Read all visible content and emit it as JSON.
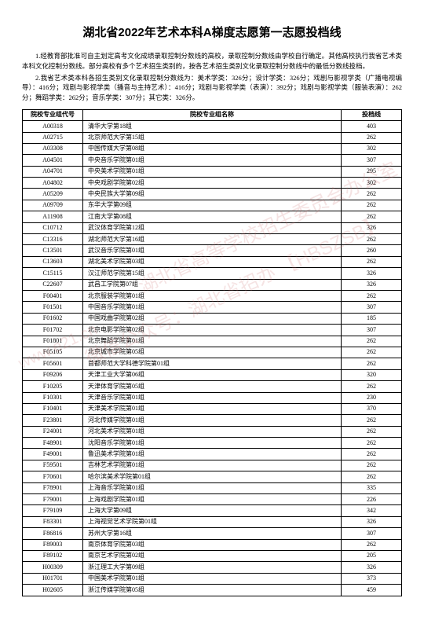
{
  "title": "湖北省2022年艺术本科A梯度志愿第一志愿投档线",
  "intro": [
    "1.经教育部批准可自主划定高考文化成绩录取控制分数线的高校，录取控制分数线由学校自行确定。其他高校执行我省艺术类本科文化控制分数线。部分高校有多个艺术招生类别的，按各艺术招生类别文化录取控制分数线中的最低分数线投档。",
    "2.我省艺术类本科各招生类别文化录取控制分数线为：美术学类：326分；设计学类：326分；戏剧与影视学类（广播电视编导）：416分；戏剧与影视学类（播音与主持艺术）：416分；戏剧与影视学类（表演）：392分；戏剧与影视学类（服装表演）：262分；舞蹈学类：262分；音乐学类：307分；其它类：326分。"
  ],
  "headers": {
    "code": "院校专业组代号",
    "name": "院校专业组名称",
    "score": "投档线"
  },
  "rows": [
    {
      "code": "A00318",
      "name": "清华大学第18组",
      "score": "403"
    },
    {
      "code": "A02715",
      "name": "北京师范大学第15组",
      "score": "262"
    },
    {
      "code": "A03308",
      "name": "中国传媒大学第08组",
      "score": "302"
    },
    {
      "code": "A04501",
      "name": "中央音乐学院第01组",
      "score": "307"
    },
    {
      "code": "A04701",
      "name": "中央美术学院第01组",
      "score": "295"
    },
    {
      "code": "A04802",
      "name": "中央戏剧学院第02组",
      "score": "302"
    },
    {
      "code": "A05209",
      "name": "中央民族大学第09组",
      "score": "262"
    },
    {
      "code": "A09709",
      "name": "东华大学第09组",
      "score": "262"
    },
    {
      "code": "A11908",
      "name": "江南大学第08组",
      "score": "262"
    },
    {
      "code": "C10712",
      "name": "武汉体育学院第12组",
      "score": "326"
    },
    {
      "code": "C13316",
      "name": "湖北师范大学第16组",
      "score": "262"
    },
    {
      "code": "C13501",
      "name": "武汉音乐学院第01组",
      "score": "260"
    },
    {
      "code": "C13603",
      "name": "湖北美术学院第03组",
      "score": "262"
    },
    {
      "code": "C15115",
      "name": "汉江师范学院第15组",
      "score": "326"
    },
    {
      "code": "C22607",
      "name": "武昌工学院第07组",
      "score": "326"
    },
    {
      "code": "F00401",
      "name": "北京服装学院第01组",
      "score": "262"
    },
    {
      "code": "F01501",
      "name": "中国音乐学院第01组",
      "score": "307"
    },
    {
      "code": "F01602",
      "name": "中国戏曲学院第02组",
      "score": "185"
    },
    {
      "code": "F01702",
      "name": "北京电影学院第02组",
      "score": "307"
    },
    {
      "code": "F01801",
      "name": "北京舞蹈学院第01组",
      "score": "262"
    },
    {
      "code": "F05105",
      "name": "北京城市学院第05组",
      "score": "262"
    },
    {
      "code": "F05601",
      "name": "首都师范大学科德学院第01组",
      "score": "262"
    },
    {
      "code": "F09206",
      "name": "天津工业大学第06组",
      "score": "320"
    },
    {
      "code": "F10205",
      "name": "天津体育学院第05组",
      "score": "262"
    },
    {
      "code": "F10301",
      "name": "天津音乐学院第01组",
      "score": "230"
    },
    {
      "code": "F10401",
      "name": "天津美术学院第01组",
      "score": "370"
    },
    {
      "code": "F23801",
      "name": "河北传媒学院第01组",
      "score": "262"
    },
    {
      "code": "F24001",
      "name": "河北美术学院第01组",
      "score": "262"
    },
    {
      "code": "F48901",
      "name": "沈阳音乐学院第01组",
      "score": "262"
    },
    {
      "code": "F49001",
      "name": "鲁迅美术学院第01组",
      "score": "262"
    },
    {
      "code": "F59501",
      "name": "吉林艺术学院第01组",
      "score": "262"
    },
    {
      "code": "F70601",
      "name": "哈尔滨美术学院第01组",
      "score": "262"
    },
    {
      "code": "F78901",
      "name": "上海音乐学院第01组",
      "score": "335"
    },
    {
      "code": "F79001",
      "name": "上海戏剧学院第01组",
      "score": "226"
    },
    {
      "code": "F79109",
      "name": "上海大学第09组",
      "score": "342"
    },
    {
      "code": "F83301",
      "name": "上海视觉艺术学院第01组",
      "score": "326"
    },
    {
      "code": "F86816",
      "name": "苏州大学第16组",
      "score": "307"
    },
    {
      "code": "F89003",
      "name": "南京体育学院第03组",
      "score": "262"
    },
    {
      "code": "F89102",
      "name": "南京艺术学院第02组",
      "score": "205"
    },
    {
      "code": "H00309",
      "name": "浙江理工大学第09组",
      "score": "326"
    },
    {
      "code": "H01701",
      "name": "中国美术学院第01组",
      "score": "373"
    },
    {
      "code": "H02605",
      "name": "浙江传媒学院第05组",
      "score": "459"
    }
  ],
  "watermarks": [
    "湖北省高等学校招生委员会办公室",
    "微信公众号：湖北省招办 【HBSZSB】",
    "www.e21.cn"
  ]
}
